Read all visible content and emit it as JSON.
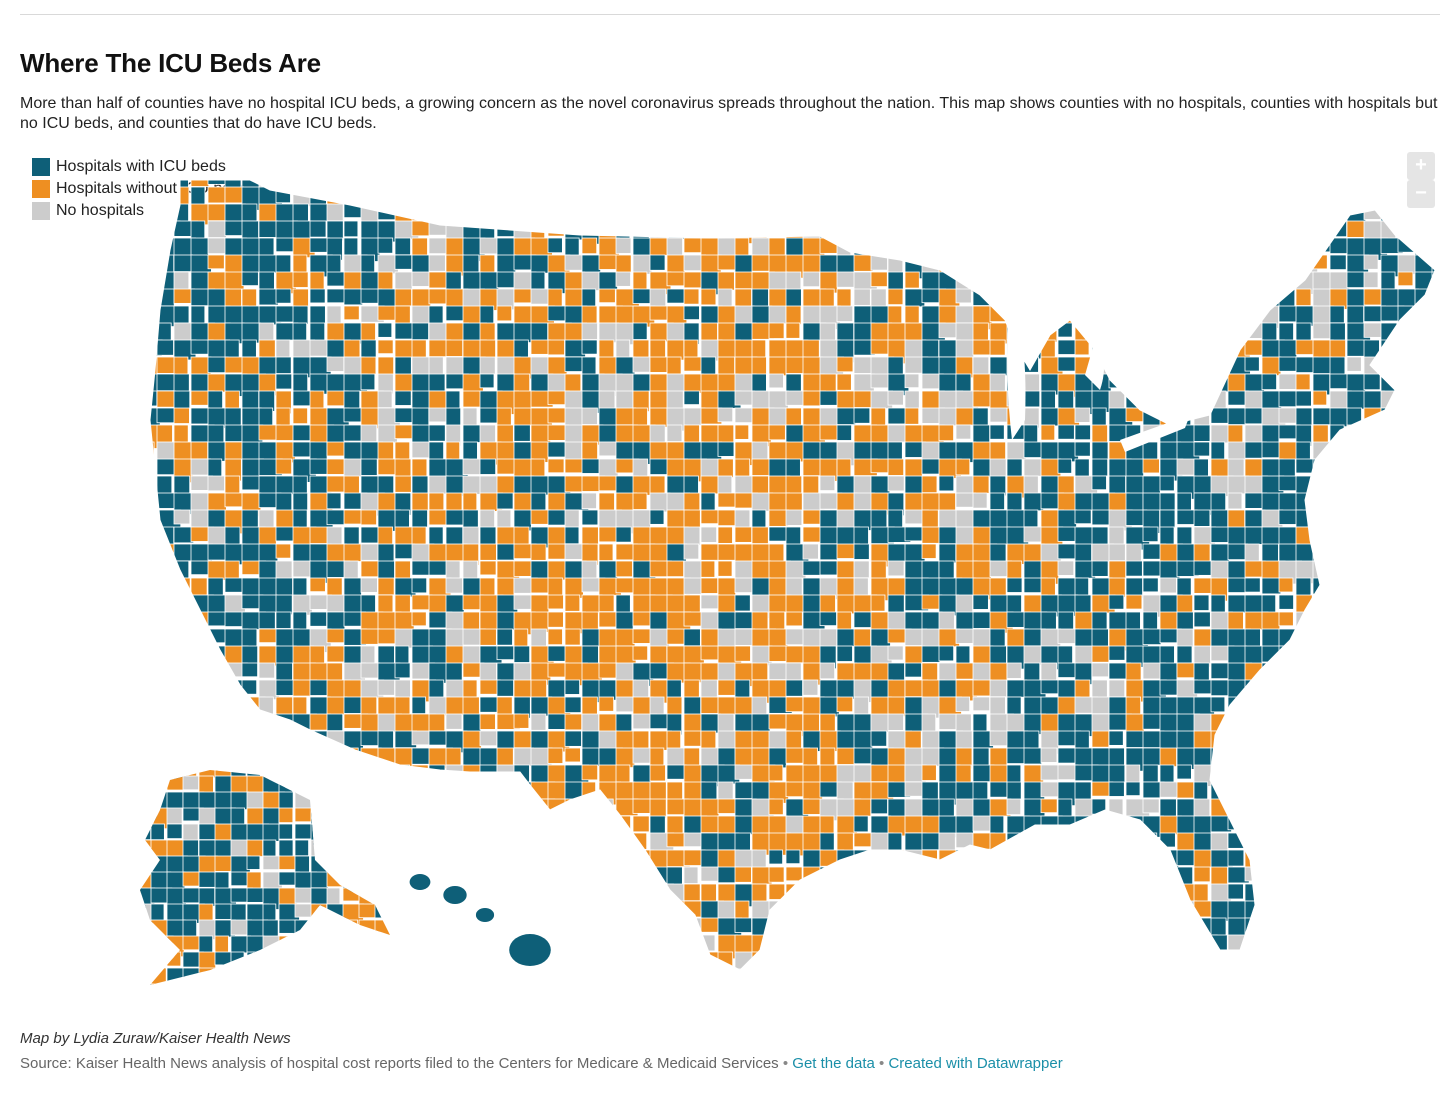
{
  "header": {
    "title": "Where The ICU Beds Are",
    "description": "More than half of counties have no hospital ICU beds, a growing concern as the novel coronavirus spreads throughout the nation. This map shows counties with no hospitals, counties with hospitals but no ICU beds, and counties that do have ICU beds."
  },
  "legend": {
    "items": [
      {
        "label": "Hospitals with ICU beds",
        "color": "#0e5f78"
      },
      {
        "label": "Hospitals without ICU beds",
        "color": "#ee8f22"
      },
      {
        "label": "No hospitals",
        "color": "#cccccc"
      }
    ]
  },
  "controls": {
    "zoom_in": "+",
    "zoom_out": "−"
  },
  "footer": {
    "byline": "Map by Lydia Zuraw/Kaiser Health News",
    "source": "Source: Kaiser Health News analysis of hospital cost reports filed to the Centers for Medicare & Medicaid Services",
    "separator": "•",
    "get_data": "Get the data",
    "created_with": "Created with Datawrapper"
  },
  "colors": {
    "icu": "#0e5f78",
    "no_icu": "#ee8f22",
    "none": "#cccccc",
    "border": "#ffffff"
  }
}
